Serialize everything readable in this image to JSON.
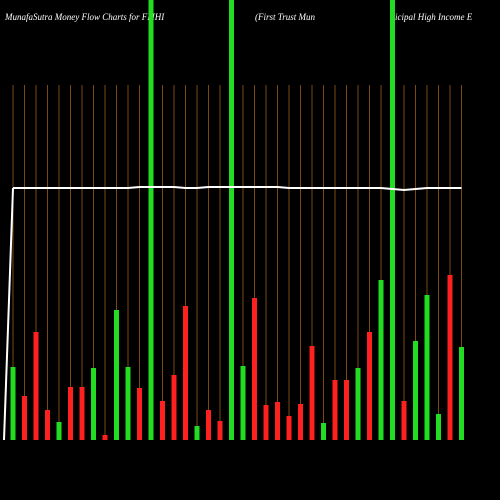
{
  "chart_data": {
    "type": "bar",
    "title": [
      "MunafaSutra  Money Flow  Charts for FMHI",
      "(First Trust Mun",
      "icipal High Income  E"
    ],
    "categories": [
      null,
      null,
      null,
      null,
      null,
      null,
      null,
      null,
      null,
      null,
      null,
      null,
      null,
      null,
      null,
      null,
      null,
      null,
      null,
      null,
      null,
      null,
      null,
      null,
      null,
      null,
      null,
      null,
      null,
      null,
      null,
      null,
      null,
      null,
      null,
      null,
      null,
      null,
      null,
      null
    ],
    "values": [
      73,
      44,
      108,
      30,
      18,
      53,
      53,
      72,
      5,
      130,
      73,
      52,
      440,
      39,
      65,
      134,
      14,
      30,
      19,
      440,
      74,
      142,
      35,
      38,
      24,
      36,
      94,
      17,
      60,
      60,
      72,
      108,
      160,
      440,
      39,
      99,
      145,
      26,
      165,
      93
    ],
    "colors": [
      "#22dd22",
      "#ff2020",
      "#ff2020",
      "#ff2020",
      "#22dd22",
      "#ff2020",
      "#ff2020",
      "#22dd22",
      "#ff2020",
      "#22dd22",
      "#22dd22",
      "#ff2020",
      "#22dd22",
      "#ff2020",
      "#ff2020",
      "#ff2020",
      "#22dd22",
      "#ff2020",
      "#ff2020",
      "#22dd22",
      "#22dd22",
      "#ff2020",
      "#ff2020",
      "#ff2020",
      "#ff2020",
      "#ff2020",
      "#ff2020",
      "#22dd22",
      "#ff2020",
      "#ff2020",
      "#22dd22",
      "#ff2020",
      "#22dd22",
      "#22dd22",
      "#ff2020",
      "#22dd22",
      "#22dd22",
      "#22dd22",
      "#ff2020",
      "#22dd22"
    ],
    "line": {
      "color": "#ffffff",
      "values": [
        252,
        252,
        252,
        252,
        252,
        252,
        252,
        252,
        252,
        252,
        252,
        253,
        253,
        253,
        253,
        252,
        252,
        253,
        253,
        253,
        253,
        253,
        253,
        253,
        252,
        252,
        252,
        252,
        252,
        252,
        252,
        252,
        252,
        251,
        250,
        251,
        252,
        252,
        252,
        252
      ]
    },
    "grid": true,
    "ylim": [
      0,
      440
    ]
  }
}
